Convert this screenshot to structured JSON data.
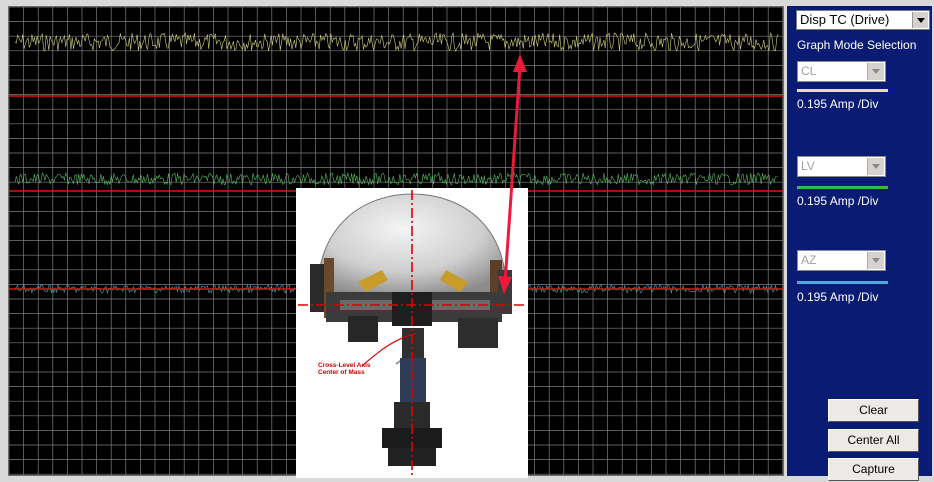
{
  "scope": {
    "grid_color": "#7f7f7f",
    "background": "#000000",
    "traces": [
      {
        "name": "CL",
        "color": "#e8e98a"
      },
      {
        "name": "LV",
        "color": "#5fcf6b"
      },
      {
        "name": "AZ",
        "color": "#62b6e8"
      }
    ],
    "reference_line_color": "#e11212",
    "arrow_color": "#ea1a3a"
  },
  "panel": {
    "graph_mode": {
      "value": "Disp TC (Drive)",
      "caption": "Graph Mode Selection"
    },
    "channels": [
      {
        "select": "CL",
        "scale": "0.195 Amp /Div",
        "line_color": "#e9e0a0"
      },
      {
        "select": "LV",
        "scale": "0.195 Amp /Div",
        "line_color": "#37b655"
      },
      {
        "select": "AZ",
        "scale": "0.195 Amp /Div",
        "line_color": "#52a9dd"
      }
    ],
    "buttons": {
      "clear": "Clear",
      "center_all": "Center All",
      "capture": "Capture"
    }
  },
  "photo": {
    "label_line1": "Cross-Level Axis",
    "label_line2": "Center of Mass"
  }
}
